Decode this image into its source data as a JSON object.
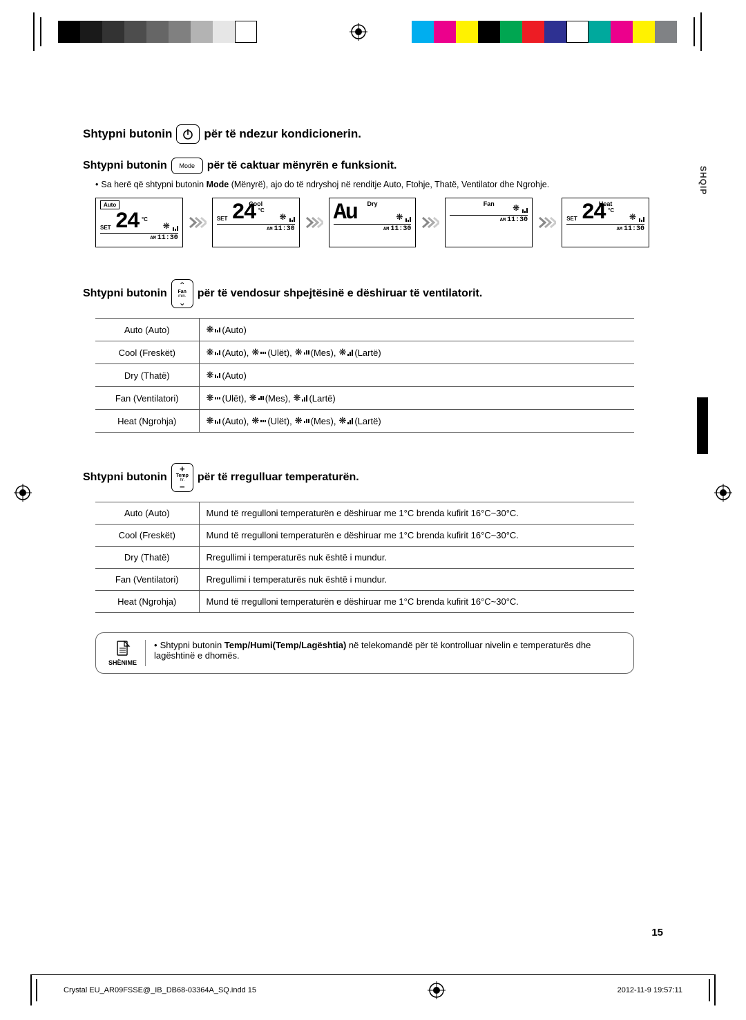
{
  "sideTab": "SHQIP",
  "instr1": {
    "pre": "Shtypni butonin",
    "post": "për të ndezur kondicionerin."
  },
  "instr2": {
    "pre": "Shtypni butonin",
    "btn": "Mode",
    "post": "për të caktuar mënyrën e funksionit."
  },
  "instr2_sub": "Sa herë që shtypni butonin Mode (Mënyrë), ajo do të ndryshoj në renditje Auto, Ftohje, Thatë, Ventilator dhe Ngrohje.",
  "instr2_sub_bold": "Mode",
  "modes": {
    "auto": {
      "tag": "Auto",
      "name": "",
      "set": "SET",
      "num": "24",
      "deg": "°C",
      "time": "11:30",
      "am": "AM",
      "showFan": true,
      "showSet": true
    },
    "cool": {
      "tag": "",
      "name": "Cool",
      "set": "SET",
      "num": "24",
      "deg": "°C",
      "time": "11:30",
      "am": "AM",
      "showFan": true,
      "showSet": true
    },
    "dry": {
      "tag": "",
      "name": "Dry",
      "set": "",
      "num": "Au",
      "deg": "",
      "time": "11:30",
      "am": "AM",
      "showFan": true,
      "showSet": false
    },
    "fan": {
      "tag": "",
      "name": "Fan",
      "set": "",
      "num": "",
      "deg": "",
      "time": "11:30",
      "am": "AM",
      "showFan": true,
      "showSet": false
    },
    "heat": {
      "tag": "",
      "name": "Heat",
      "set": "SET",
      "num": "24",
      "deg": "°C",
      "time": "11:30",
      "am": "AM",
      "showFan": true,
      "showSet": true
    }
  },
  "instr3": {
    "pre": "Shtypni butonin",
    "btnLine1": "Fan",
    "btnLine2": "min.",
    "post": "për të vendosur shpejtësinë e dëshiruar të ventilatorit."
  },
  "fanTable": {
    "rows": [
      {
        "mode": "Auto (Auto)",
        "items": [
          [
            "auto",
            "(Auto)"
          ]
        ]
      },
      {
        "mode": "Cool (Freskët)",
        "items": [
          [
            "auto",
            "(Auto),"
          ],
          [
            "low",
            "(Ulët),"
          ],
          [
            "mid",
            "(Mes),"
          ],
          [
            "high",
            "(Lartë)"
          ]
        ]
      },
      {
        "mode": "Dry (Thatë)",
        "items": [
          [
            "auto",
            "(Auto)"
          ]
        ]
      },
      {
        "mode": "Fan (Ventilatori)",
        "items": [
          [
            "low",
            "(Ulët),"
          ],
          [
            "mid",
            "(Mes),"
          ],
          [
            "high",
            "(Lartë)"
          ]
        ]
      },
      {
        "mode": "Heat (Ngrohja)",
        "items": [
          [
            "auto",
            "(Auto),"
          ],
          [
            "low",
            "(Ulët),"
          ],
          [
            "mid",
            "(Mes),"
          ],
          [
            "high",
            "(Lartë)"
          ]
        ]
      }
    ]
  },
  "instr4": {
    "pre": "Shtypni butonin",
    "btnLine1": "Temp",
    "btnLine2": "hr.",
    "post": "për të rregulluar temperaturën."
  },
  "tempTable": {
    "rows": [
      {
        "mode": "Auto (Auto)",
        "text": "Mund të rregulloni temperaturën e dëshiruar me 1°C brenda kufirit 16°C~30°C."
      },
      {
        "mode": "Cool (Freskët)",
        "text": "Mund të rregulloni temperaturën e dëshiruar me 1°C brenda kufirit 16°C~30°C."
      },
      {
        "mode": "Dry (Thatë)",
        "text": "Rregullimi i temperaturës nuk është i mundur."
      },
      {
        "mode": "Fan (Ventilatori)",
        "text": "Rregullimi i temperaturës nuk është i mundur."
      },
      {
        "mode": "Heat (Ngrohja)",
        "text": "Mund të rregulloni temperaturën e dëshiruar me 1°C brenda kufirit 16°C~30°C."
      }
    ]
  },
  "note": {
    "head": "SHËNIME",
    "body_pre": "Shtypni butonin ",
    "body_bold": "Temp/Humi",
    "body_paren": "(Temp/Lagështia)",
    "body_post": " në telekomandë për të kontrolluar nivelin e temperaturës dhe lagështinë e dhomës."
  },
  "pageNumber": "15",
  "footer": {
    "left": "Crystal EU_AR09FSSE@_IB_DB68-03364A_SQ.indd   15",
    "right": "2012-11-9   19:57:11"
  },
  "colorBars": {
    "left": [
      "#000000",
      "#1a1a1a",
      "#333333",
      "#4d4d4d",
      "#666666",
      "#808080",
      "#b3b3b3",
      "#e6e6e6",
      "#ffffff"
    ],
    "right": [
      "#00aeef",
      "#ec008c",
      "#fff200",
      "#000000",
      "#00a651",
      "#ed1c24",
      "#2e3192",
      "#ffffff",
      "#00a99d",
      "#ec008c",
      "#fff200",
      "#808285"
    ]
  }
}
